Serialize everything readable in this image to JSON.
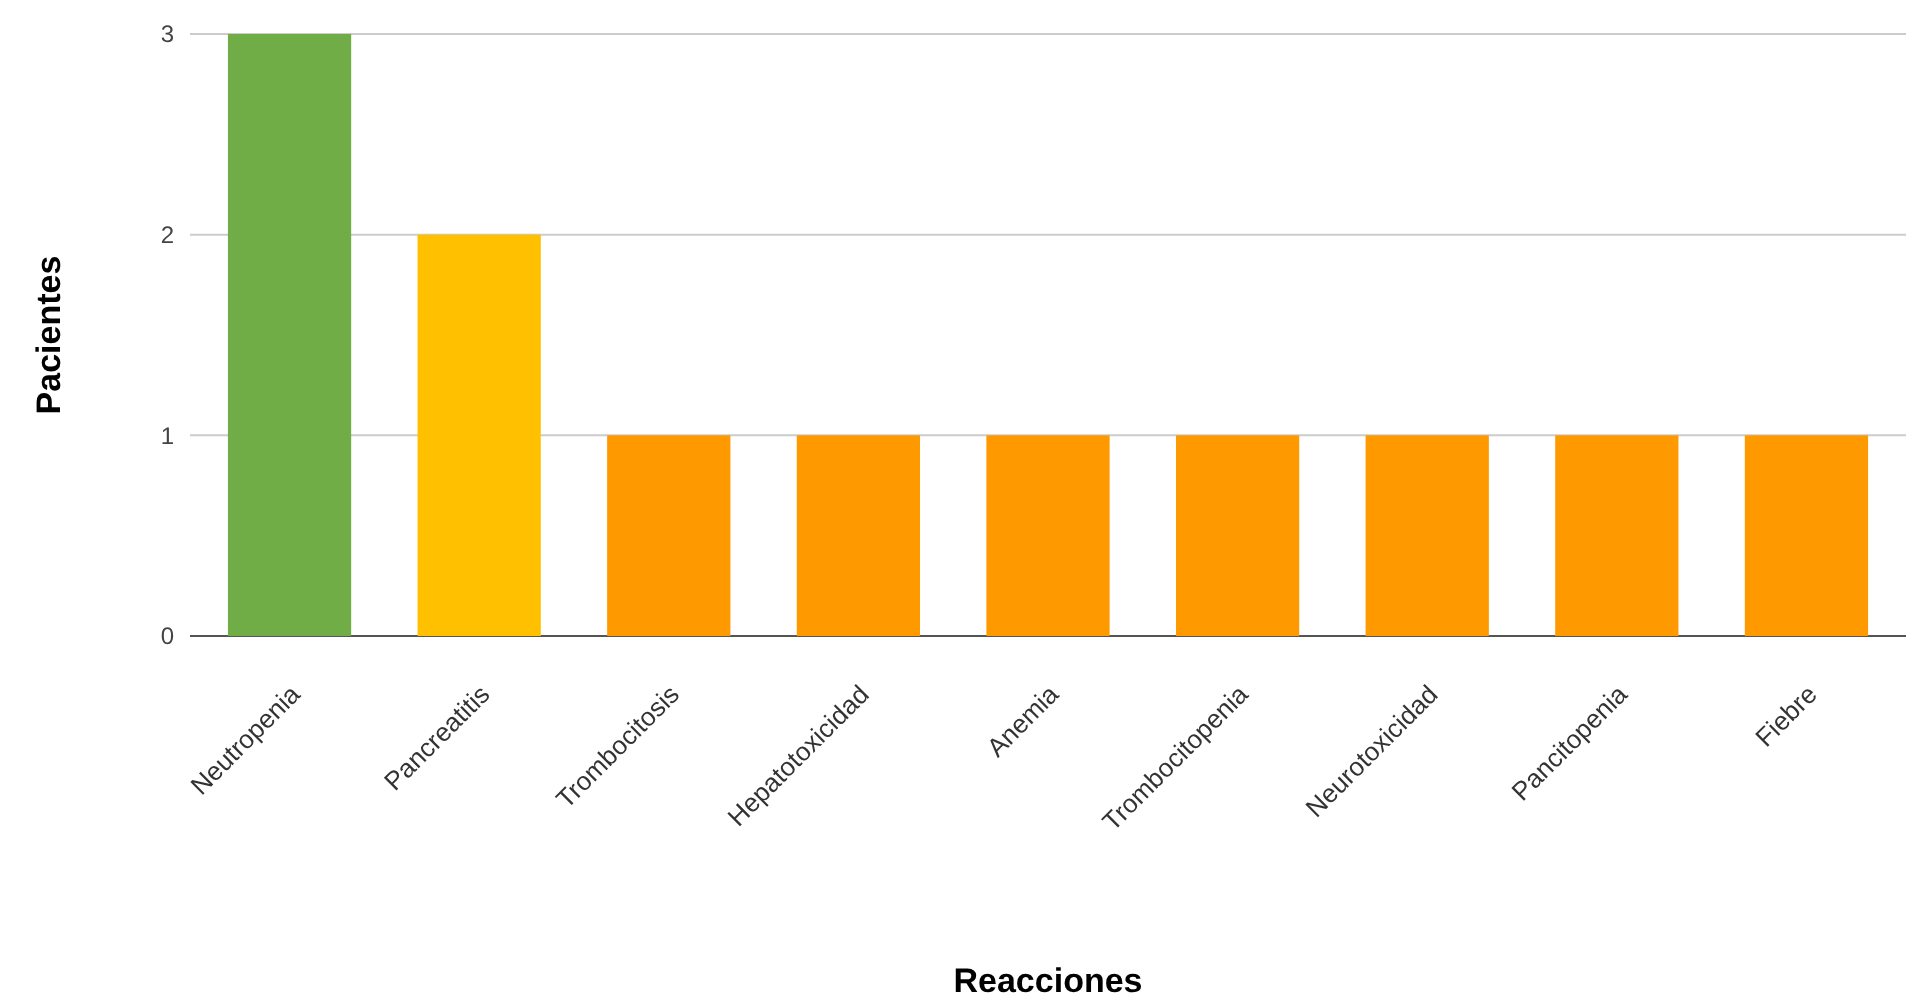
{
  "chart_data": {
    "type": "bar",
    "xlabel": "Reacciones",
    "ylabel": "Pacientes",
    "categories": [
      "Neutropenia",
      "Pancreatitis",
      "Trombocitosis",
      "Hepatotoxicidad",
      "Anemia",
      "Trombocitopenia",
      "Neurotoxicidad",
      "Pancitopenia",
      "Fiebre"
    ],
    "values": [
      3,
      2,
      1,
      1,
      1,
      1,
      1,
      1,
      1
    ],
    "colors": [
      "#70ad47",
      "#ffc000",
      "#ff9900",
      "#ff9900",
      "#ff9900",
      "#ff9900",
      "#ff9900",
      "#ff9900",
      "#ff9900"
    ],
    "ylim": [
      0,
      3
    ],
    "yticks": [
      0,
      1,
      2,
      3
    ],
    "grid": "y"
  }
}
